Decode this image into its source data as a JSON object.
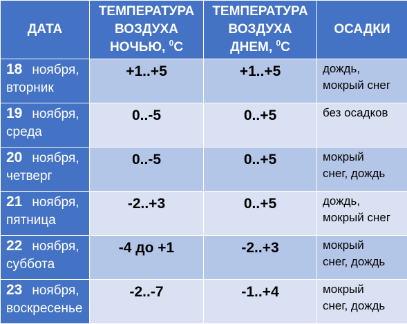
{
  "header": {
    "date_label": "ДАТА",
    "night_line1": "ТЕМПЕРАТУРА",
    "night_line2": "ВОЗДУХА",
    "night_line3": "НОЧЬЮ, ",
    "night_unit_sup": "0",
    "night_unit": "С",
    "day_line1": "ТЕМПЕРАТУРА",
    "day_line2": "ВОЗДУХА",
    "day_line3": "ДНЕМ, ",
    "day_unit_sup": "0",
    "day_unit": "С",
    "precip_label": "ОСАДКИ"
  },
  "rows": [
    {
      "day": "18",
      "month": "ноября,",
      "weekday": "вторник",
      "night": "+1..+5",
      "daytime": "+1..+5",
      "precip_line1": "дождь,",
      "precip_line2": "мокрый снег"
    },
    {
      "day": "19",
      "month": "ноября,",
      "weekday": "среда",
      "night": "0..-5",
      "daytime": "0..+5",
      "precip_line1": "без осадков",
      "precip_line2": ""
    },
    {
      "day": "20",
      "month": "ноября,",
      "weekday": "четверг",
      "night": "0..-5",
      "daytime": "0..+5",
      "precip_line1": "мокрый",
      "precip_line2": "снег, дождь"
    },
    {
      "day": "21",
      "month": "ноября,",
      "weekday": "пятница",
      "night": "-2..+3",
      "daytime": "0..+5",
      "precip_line1": "дождь,",
      "precip_line2": "мокрый снег"
    },
    {
      "day": "22",
      "month": "ноября,",
      "weekday": "суббота",
      "night": "-4 до +1",
      "daytime": "-2..+3",
      "precip_line1": "мокрый",
      "precip_line2": "снег, дождь"
    },
    {
      "day": "23",
      "month": "ноября,",
      "weekday": "воскресенье",
      "night": "-2..-7",
      "daytime": "-1..+4",
      "precip_line1": "мокрый",
      "precip_line2": "снег, дождь"
    }
  ]
}
